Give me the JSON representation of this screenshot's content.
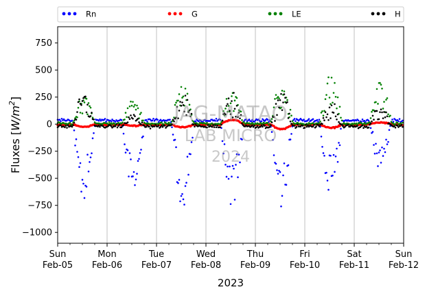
{
  "chart_data": {
    "type": "scatter",
    "title": "",
    "xlabel": "2023",
    "ylabel": "Fluxes [W/m²]",
    "ylabel_parts": {
      "base": "Fluxes [",
      "italic": "W/m",
      "sup": "2",
      "close": "]"
    },
    "ylim": [
      -1100,
      900
    ],
    "yticks": [
      -1000,
      -750,
      -500,
      -250,
      0,
      250,
      500,
      750
    ],
    "xlim": [
      "2023-02-05",
      "2023-02-12"
    ],
    "xticks": [
      {
        "day": "Sun",
        "date": "Feb-05"
      },
      {
        "day": "Mon",
        "date": "Feb-06"
      },
      {
        "day": "Tue",
        "date": "Feb-07"
      },
      {
        "day": "Wed",
        "date": "Feb-08"
      },
      {
        "day": "Thu",
        "date": "Feb-09"
      },
      {
        "day": "Fri",
        "date": "Feb-10"
      },
      {
        "day": "Sat",
        "date": "Feb-11"
      },
      {
        "day": "Sun",
        "date": "Feb-12"
      }
    ],
    "grid": "vertical",
    "legend_position": "top",
    "series": [
      {
        "name": "Rn",
        "color": "#0000ff",
        "night": 35,
        "daily_min": [
          -750,
          -700,
          -770,
          -830,
          -790,
          -690,
          -420
        ]
      },
      {
        "name": "G",
        "color": "#ff0000",
        "night": 0,
        "daily_min": [
          -25,
          -15,
          -30,
          40,
          -45,
          -35,
          15
        ]
      },
      {
        "name": "LE",
        "color": "#008000",
        "night": 5,
        "daily_max": [
          270,
          230,
          360,
          330,
          400,
          470,
          420
        ]
      },
      {
        "name": "H",
        "color": "#000000",
        "night": -20,
        "daily_max": [
          300,
          90,
          320,
          310,
          300,
          220,
          180
        ]
      }
    ]
  },
  "watermark": [
    "JAG-MATAO",
    "LAB MICRO",
    "2024"
  ]
}
